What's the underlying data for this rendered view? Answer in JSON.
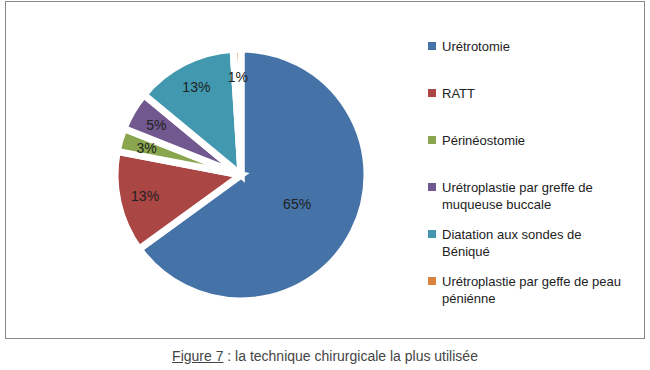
{
  "chart_data": {
    "type": "pie",
    "title": "Figure 7 : la technique chirurgicale la plus utilisée",
    "categories": [
      "Urétrotomie",
      "RATT",
      "Périnéostomie",
      "Urétroplastie par greffe de muqueuse buccale",
      "Diatation aux sondes de Béniqué",
      "Urétroplastie par geffe de peau péniénne"
    ],
    "values": [
      65,
      13,
      3,
      5,
      13,
      1
    ],
    "value_labels": [
      "65%",
      "13%",
      "3%",
      "5%",
      "13%",
      "1%"
    ],
    "colors": [
      "#4572A7",
      "#AA4643",
      "#89A54E",
      "#71588F",
      "#4198AF",
      "#DB843D"
    ],
    "data_labels": true,
    "legend": "right"
  }
}
